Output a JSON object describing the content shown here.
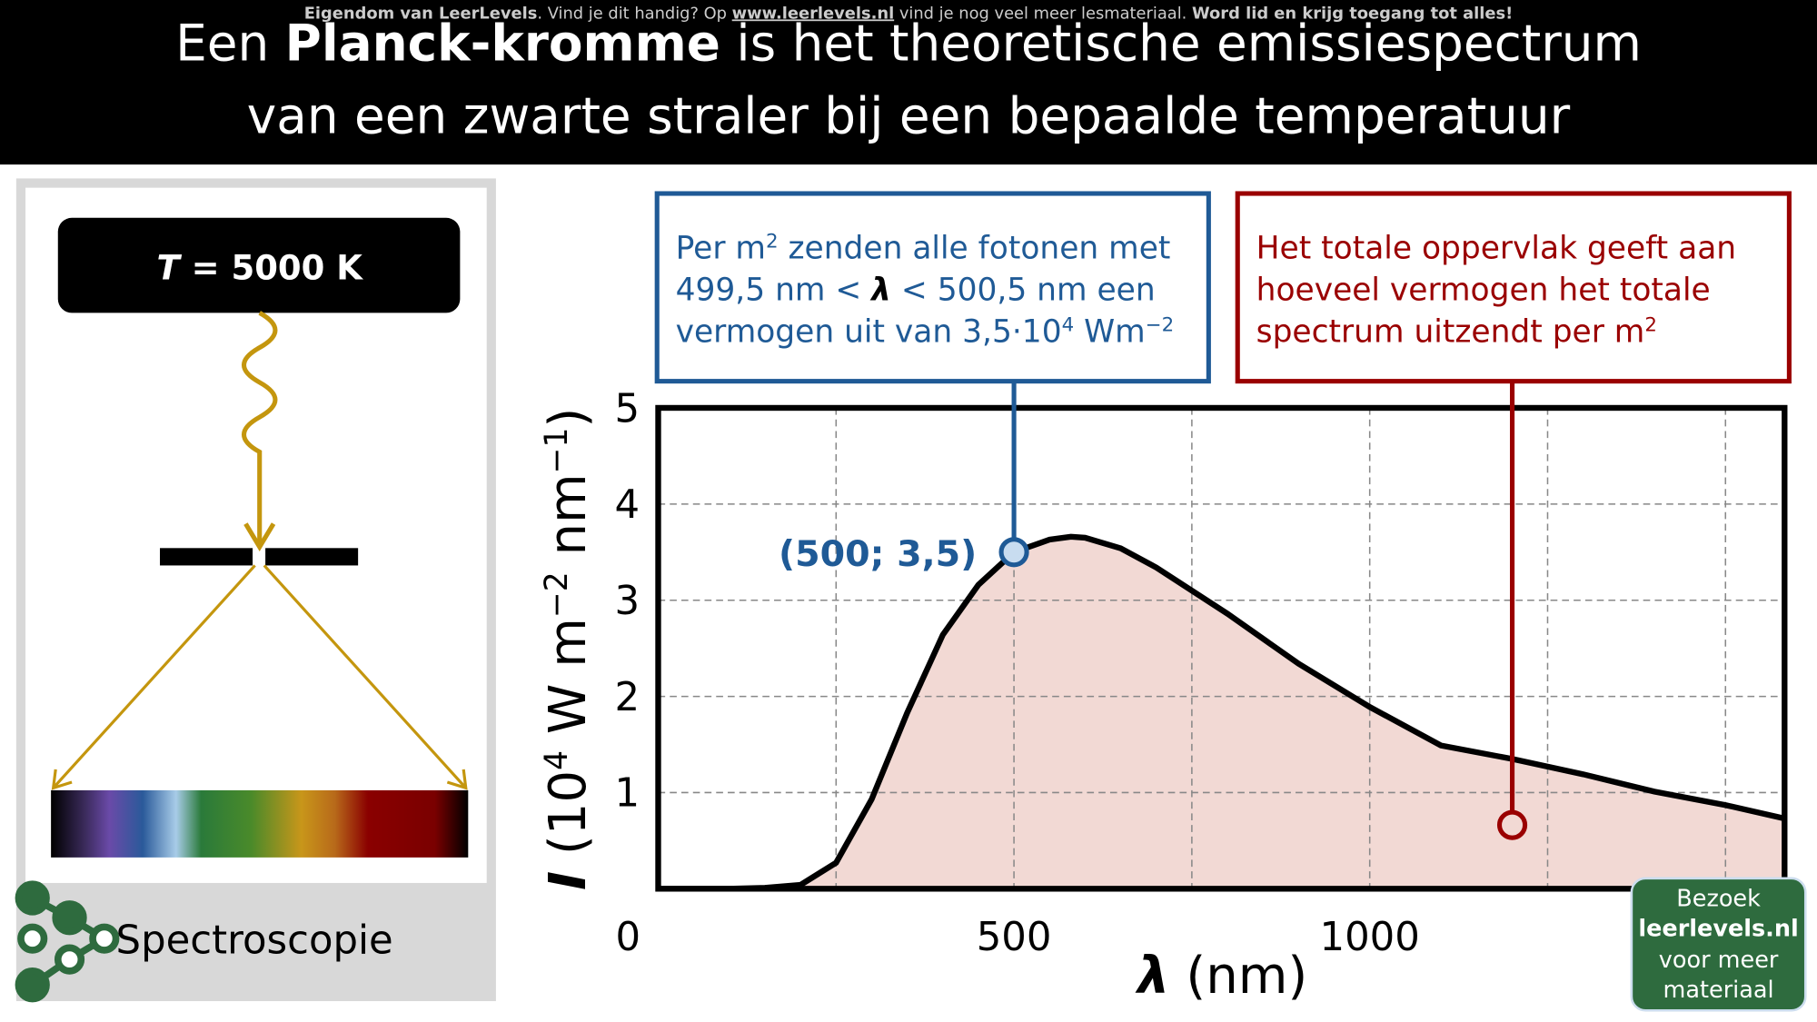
{
  "header": {
    "watermark": [
      "Eigendom van LeerLevels",
      ". Vind je dit handig? Op ",
      "www.leerlevels.nl",
      " vind je nog veel meer lesmateriaal. ",
      "Word lid en krijg toegang tot alles!"
    ],
    "title_line1": [
      "Een ",
      "Planck-kromme",
      " is het theoretische emissiespectrum"
    ],
    "title_line2": "van een zwarte straler bij een bepaalde temperatuur"
  },
  "left_panel": {
    "temperature": [
      "T",
      " = 5000 K"
    ],
    "label": "Spectroscopie"
  },
  "blue_box": {
    "line1": [
      "Per m",
      "2",
      " zenden alle fotonen met"
    ],
    "line2": [
      "499,5 nm < ",
      "λ",
      " < 500,5 nm een"
    ],
    "line3": [
      "vermogen uit van 3,5·10",
      "4",
      " Wm",
      "−2"
    ]
  },
  "red_box": {
    "line1": "Het totale oppervlak geeft aan",
    "line2": "hoeveel vermogen het totale",
    "line3": [
      "spectrum uitzendt per m",
      "2"
    ]
  },
  "button": [
    "Bezoek",
    "leerlevels.nl",
    "voor meer",
    "materiaal"
  ],
  "chart_data": {
    "type": "line",
    "color": "#000000",
    "area_color": "#f2d9d4",
    "x": [
      0,
      100,
      150,
      200,
      250,
      300,
      350,
      400,
      450,
      500,
      550,
      580,
      600,
      650,
      700,
      800,
      900,
      1000,
      1100,
      1200,
      1300,
      1400,
      1500,
      1583
    ],
    "values": [
      0,
      0,
      0.01,
      0.04,
      0.27,
      0.93,
      1.83,
      2.64,
      3.16,
      3.5,
      3.63,
      3.66,
      3.65,
      3.54,
      3.34,
      2.86,
      2.34,
      1.89,
      1.49,
      1.35,
      1.19,
      1.01,
      0.87,
      0.73
    ],
    "xlim": [
      0,
      1583
    ],
    "ylim": [
      0,
      5
    ],
    "xticks": [
      0,
      500,
      1000
    ],
    "yticks": [
      1,
      2,
      3,
      4,
      5
    ],
    "xgrid": [
      250,
      500,
      750,
      1000,
      1250,
      1500
    ],
    "ygrid": [
      1,
      2,
      3,
      4
    ],
    "grid": true,
    "xlabel": [
      "λ",
      " (nm)"
    ],
    "ylabel": [
      "I",
      " (10",
      "4",
      " W m",
      "−2",
      " nm",
      "−1",
      ")"
    ],
    "highlight": {
      "x": 500,
      "y": 3.5,
      "label": "(500; 3,5)"
    }
  }
}
